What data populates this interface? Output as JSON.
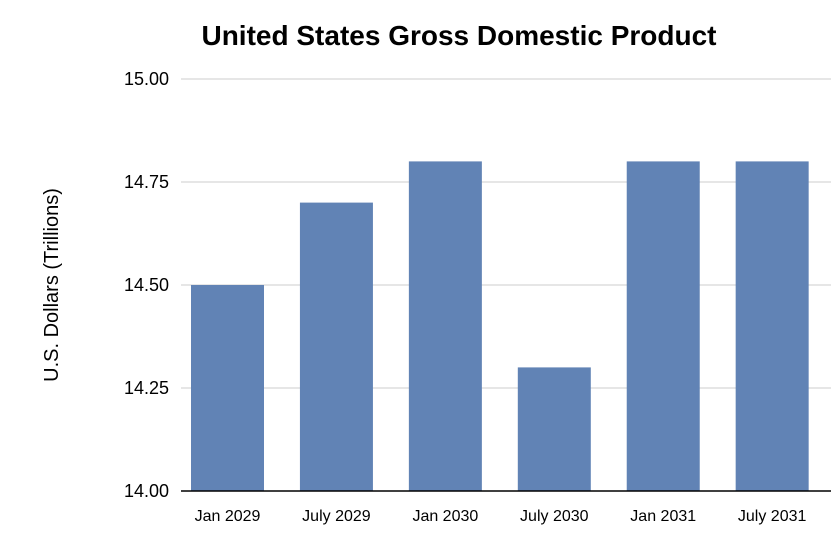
{
  "chart_data": {
    "type": "bar",
    "title": "United States Gross Domestic Product",
    "ylabel": "U.S. Dollars (Trillions)",
    "xlabel": "",
    "categories": [
      "Jan 2029",
      "July 2029",
      "Jan 2030",
      "July 2030",
      "Jan 2031",
      "July 2031"
    ],
    "values": [
      14.5,
      14.7,
      14.8,
      14.3,
      14.8,
      14.8
    ],
    "ylim": [
      14.0,
      15.0
    ],
    "yticks": [
      "14.00",
      "14.25",
      "14.50",
      "14.75",
      "15.00"
    ],
    "grid": true,
    "legend": "none",
    "bar_color": "#6183b5"
  }
}
